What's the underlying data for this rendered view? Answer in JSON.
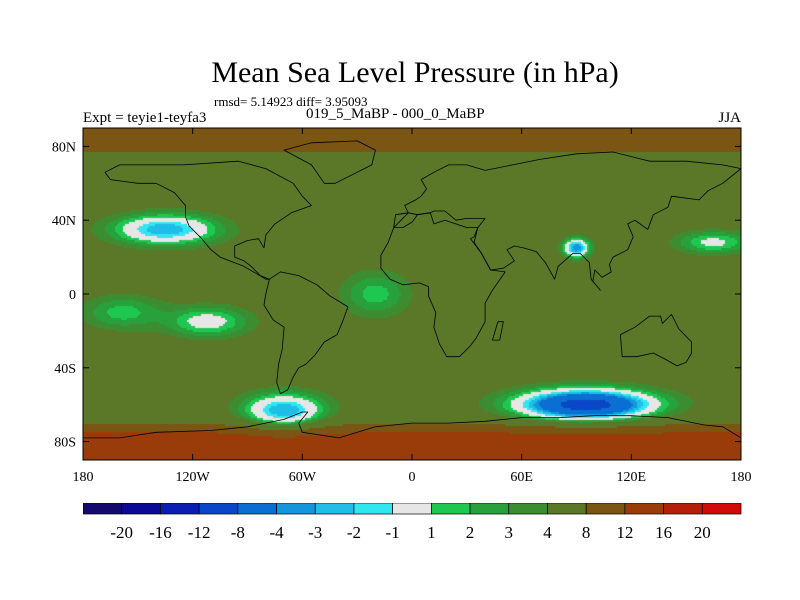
{
  "chart_data": {
    "type": "heatmap",
    "title": "Mean Sea Level Pressure (in hPa)",
    "subtitle": "rmsd= 5.14923 diff= 3.95093",
    "left_label": "Expt = teyie1-teyfa3",
    "center_label": "019_5_MaBP - 000_0_MaBP",
    "right_label": "JJA",
    "projection": "cylindrical equidistant",
    "xlim": [
      -180,
      180
    ],
    "ylim": [
      -90,
      90
    ],
    "x_ticks": [
      {
        "value": -180,
        "label": "180"
      },
      {
        "value": -120,
        "label": "120W"
      },
      {
        "value": -60,
        "label": "60W"
      },
      {
        "value": 0,
        "label": "0"
      },
      {
        "value": 60,
        "label": "60E"
      },
      {
        "value": 120,
        "label": "120E"
      },
      {
        "value": 180,
        "label": "180"
      }
    ],
    "y_ticks": [
      {
        "value": 80,
        "label": "80N"
      },
      {
        "value": 40,
        "label": "40N"
      },
      {
        "value": 0,
        "label": "0"
      },
      {
        "value": -40,
        "label": "40S"
      },
      {
        "value": -80,
        "label": "80S"
      }
    ],
    "colorbar": {
      "levels": [
        -20,
        -16,
        -12,
        -8,
        -4,
        -3,
        -2,
        -1,
        1,
        2,
        3,
        4,
        8,
        12,
        16,
        20
      ],
      "labels": [
        "-20",
        "-16",
        "-12",
        "-8",
        "-4",
        "-3",
        "-2",
        "-1",
        "1",
        "2",
        "3",
        "4",
        "8",
        "12",
        "16",
        "20"
      ],
      "colors": [
        "#140a6e",
        "#0a0a96",
        "#0a1eb4",
        "#0a46c8",
        "#0a6ed2",
        "#1496dc",
        "#1ebee6",
        "#32e6f0",
        "#e6e6e6",
        "#1ec850",
        "#28a03c",
        "#3c8c32",
        "#5a7828",
        "#7a5514",
        "#9a3c0a",
        "#b41e0a",
        "#d20a0a"
      ]
    },
    "fields": [
      {
        "region": "background",
        "lon": 0,
        "lat": 0,
        "value": 5
      },
      {
        "region": "southern-ocean-high",
        "lon": 0,
        "lat": -83,
        "value": 14
      },
      {
        "region": "arctic-high",
        "lon": 0,
        "lat": 85,
        "value": 10
      },
      {
        "region": "north-pacific-low",
        "lon": -135,
        "lat": 35,
        "value": -3
      },
      {
        "region": "south-indian-ocean-low",
        "lon": 95,
        "lat": -60,
        "value": -10
      },
      {
        "region": "south-atlantic-low",
        "lon": -70,
        "lat": -63,
        "value": -3
      },
      {
        "region": "tibet-low",
        "lon": 90,
        "lat": 25,
        "value": -4
      },
      {
        "region": "tropical-pacific-west",
        "lon": -158,
        "lat": -10,
        "value": 1.5
      },
      {
        "region": "tropical-pacific-east",
        "lon": -112,
        "lat": -15,
        "value": 0
      },
      {
        "region": "eastern-pacific-north",
        "lon": 165,
        "lat": 28,
        "value": 0.5
      },
      {
        "region": "south-atlantic-tropics",
        "lon": -20,
        "lat": 0,
        "value": 1.5
      }
    ]
  }
}
